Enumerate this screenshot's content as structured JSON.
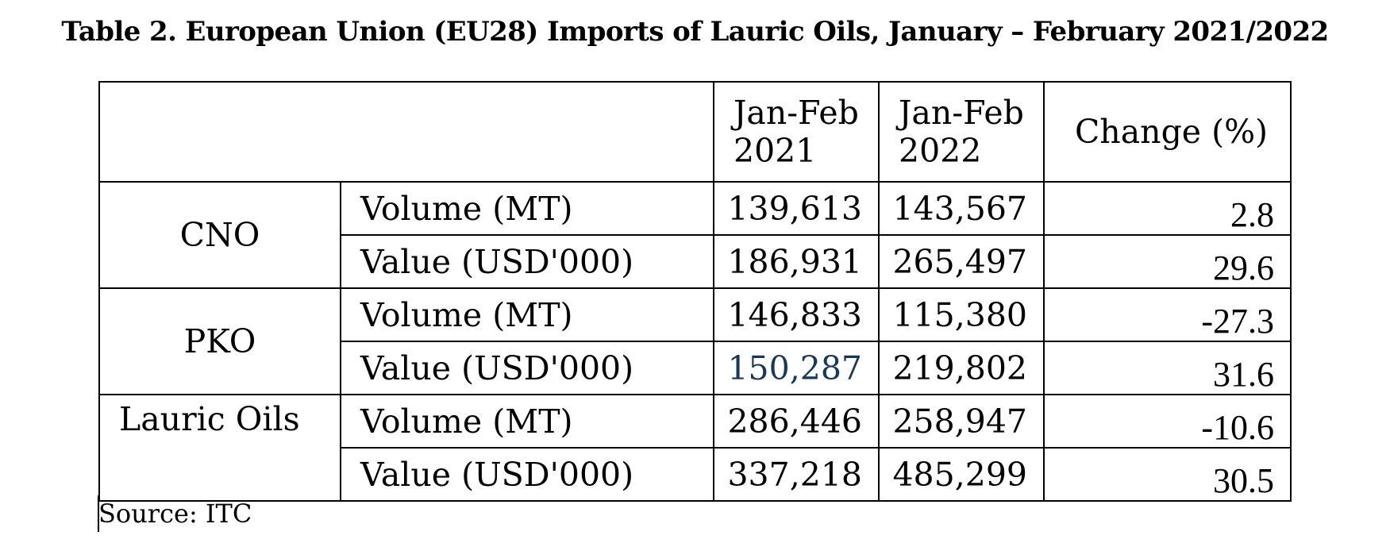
{
  "title": "Table 2. European Union (EU28) Imports of Lauric Oils, January – February 2021/2022",
  "header": {
    "col1_line1": "Jan-Feb",
    "col1_line2": "2021",
    "col2_line1": "Jan-Feb",
    "col2_line2": "2022",
    "change": "Change (%)"
  },
  "groups": [
    {
      "name": "CNO",
      "rows": [
        {
          "metric": "Volume (MT)",
          "v2021": "139,613",
          "v2022": "143,567",
          "change": "2.8"
        },
        {
          "metric": "Value (USD'000)",
          "v2021": "186,931",
          "v2022": "265,497",
          "change": "29.6"
        }
      ]
    },
    {
      "name": "PKO",
      "rows": [
        {
          "metric": "Volume (MT)",
          "v2021": "146,833",
          "v2022": "115,380",
          "change": "-27.3"
        },
        {
          "metric": "Value (USD'000)",
          "v2021": "150,287",
          "v2022": "219,802",
          "change": "31.6"
        }
      ]
    },
    {
      "name": "Lauric Oils",
      "rows": [
        {
          "metric": "Volume (MT)",
          "v2021": "286,446",
          "v2022": "258,947",
          "change": "-10.6"
        },
        {
          "metric": "Value (USD'000)",
          "v2021": "337,218",
          "v2022": "485,299",
          "change": "30.5"
        }
      ]
    }
  ],
  "source": "Source: ITC",
  "colors": {
    "text": "#000000",
    "highlight_value": "#17375e",
    "border": "#000000"
  }
}
